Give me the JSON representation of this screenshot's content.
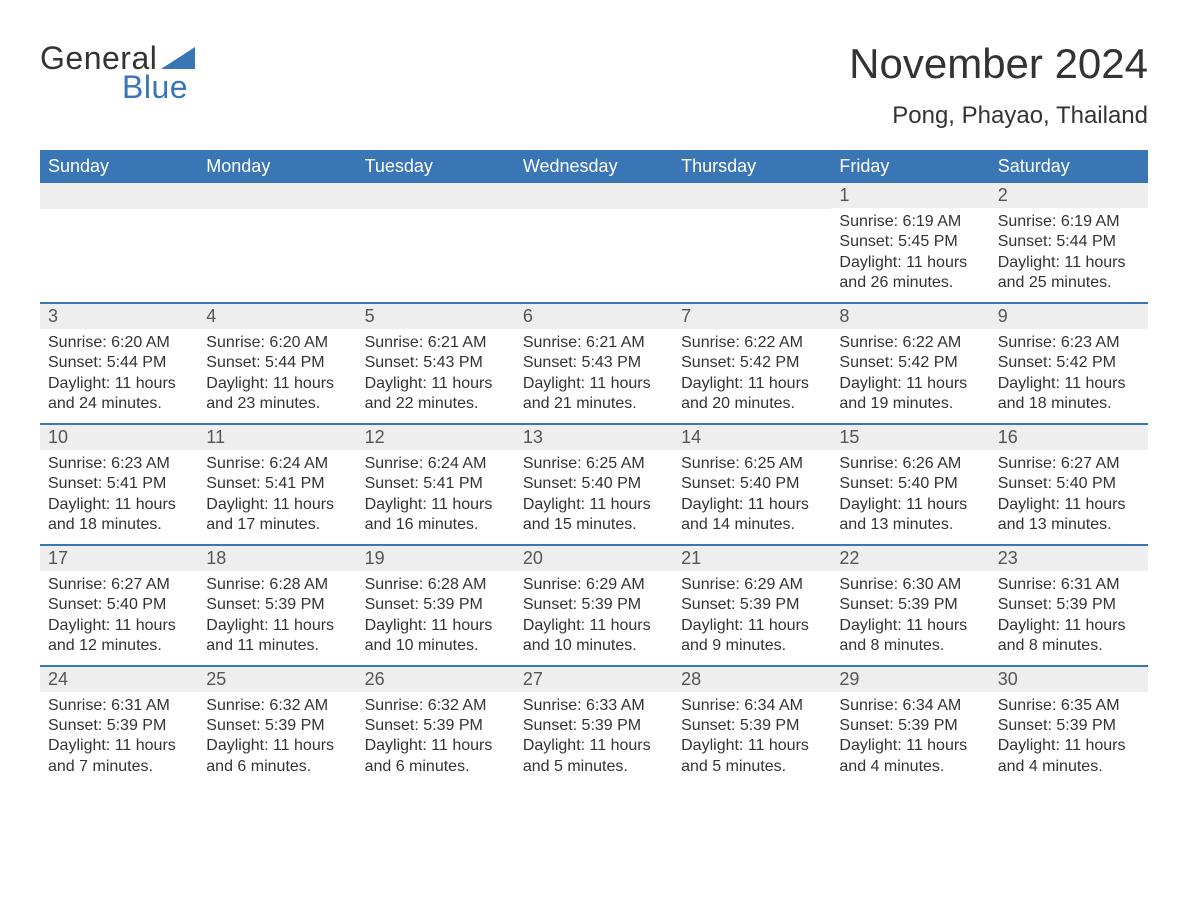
{
  "logo": {
    "word1": "General",
    "word2": "Blue"
  },
  "title": {
    "month": "November 2024",
    "location": "Pong, Phayao, Thailand"
  },
  "colors": {
    "header_bg": "#3a76b6",
    "header_text": "#ffffff",
    "week_border": "#3a76b6",
    "daynum_bg": "#eeeeee",
    "body_text": "#333333",
    "logo_blue": "#3a76b6"
  },
  "calendar": {
    "day_headers": [
      "Sunday",
      "Monday",
      "Tuesday",
      "Wednesday",
      "Thursday",
      "Friday",
      "Saturday"
    ],
    "weeks": [
      [
        {
          "empty": true
        },
        {
          "empty": true
        },
        {
          "empty": true
        },
        {
          "empty": true
        },
        {
          "empty": true
        },
        {
          "day": "1",
          "sunrise": "Sunrise: 6:19 AM",
          "sunset": "Sunset: 5:45 PM",
          "daylight": "Daylight: 11 hours and 26 minutes."
        },
        {
          "day": "2",
          "sunrise": "Sunrise: 6:19 AM",
          "sunset": "Sunset: 5:44 PM",
          "daylight": "Daylight: 11 hours and 25 minutes."
        }
      ],
      [
        {
          "day": "3",
          "sunrise": "Sunrise: 6:20 AM",
          "sunset": "Sunset: 5:44 PM",
          "daylight": "Daylight: 11 hours and 24 minutes."
        },
        {
          "day": "4",
          "sunrise": "Sunrise: 6:20 AM",
          "sunset": "Sunset: 5:44 PM",
          "daylight": "Daylight: 11 hours and 23 minutes."
        },
        {
          "day": "5",
          "sunrise": "Sunrise: 6:21 AM",
          "sunset": "Sunset: 5:43 PM",
          "daylight": "Daylight: 11 hours and 22 minutes."
        },
        {
          "day": "6",
          "sunrise": "Sunrise: 6:21 AM",
          "sunset": "Sunset: 5:43 PM",
          "daylight": "Daylight: 11 hours and 21 minutes."
        },
        {
          "day": "7",
          "sunrise": "Sunrise: 6:22 AM",
          "sunset": "Sunset: 5:42 PM",
          "daylight": "Daylight: 11 hours and 20 minutes."
        },
        {
          "day": "8",
          "sunrise": "Sunrise: 6:22 AM",
          "sunset": "Sunset: 5:42 PM",
          "daylight": "Daylight: 11 hours and 19 minutes."
        },
        {
          "day": "9",
          "sunrise": "Sunrise: 6:23 AM",
          "sunset": "Sunset: 5:42 PM",
          "daylight": "Daylight: 11 hours and 18 minutes."
        }
      ],
      [
        {
          "day": "10",
          "sunrise": "Sunrise: 6:23 AM",
          "sunset": "Sunset: 5:41 PM",
          "daylight": "Daylight: 11 hours and 18 minutes."
        },
        {
          "day": "11",
          "sunrise": "Sunrise: 6:24 AM",
          "sunset": "Sunset: 5:41 PM",
          "daylight": "Daylight: 11 hours and 17 minutes."
        },
        {
          "day": "12",
          "sunrise": "Sunrise: 6:24 AM",
          "sunset": "Sunset: 5:41 PM",
          "daylight": "Daylight: 11 hours and 16 minutes."
        },
        {
          "day": "13",
          "sunrise": "Sunrise: 6:25 AM",
          "sunset": "Sunset: 5:40 PM",
          "daylight": "Daylight: 11 hours and 15 minutes."
        },
        {
          "day": "14",
          "sunrise": "Sunrise: 6:25 AM",
          "sunset": "Sunset: 5:40 PM",
          "daylight": "Daylight: 11 hours and 14 minutes."
        },
        {
          "day": "15",
          "sunrise": "Sunrise: 6:26 AM",
          "sunset": "Sunset: 5:40 PM",
          "daylight": "Daylight: 11 hours and 13 minutes."
        },
        {
          "day": "16",
          "sunrise": "Sunrise: 6:27 AM",
          "sunset": "Sunset: 5:40 PM",
          "daylight": "Daylight: 11 hours and 13 minutes."
        }
      ],
      [
        {
          "day": "17",
          "sunrise": "Sunrise: 6:27 AM",
          "sunset": "Sunset: 5:40 PM",
          "daylight": "Daylight: 11 hours and 12 minutes."
        },
        {
          "day": "18",
          "sunrise": "Sunrise: 6:28 AM",
          "sunset": "Sunset: 5:39 PM",
          "daylight": "Daylight: 11 hours and 11 minutes."
        },
        {
          "day": "19",
          "sunrise": "Sunrise: 6:28 AM",
          "sunset": "Sunset: 5:39 PM",
          "daylight": "Daylight: 11 hours and 10 minutes."
        },
        {
          "day": "20",
          "sunrise": "Sunrise: 6:29 AM",
          "sunset": "Sunset: 5:39 PM",
          "daylight": "Daylight: 11 hours and 10 minutes."
        },
        {
          "day": "21",
          "sunrise": "Sunrise: 6:29 AM",
          "sunset": "Sunset: 5:39 PM",
          "daylight": "Daylight: 11 hours and 9 minutes."
        },
        {
          "day": "22",
          "sunrise": "Sunrise: 6:30 AM",
          "sunset": "Sunset: 5:39 PM",
          "daylight": "Daylight: 11 hours and 8 minutes."
        },
        {
          "day": "23",
          "sunrise": "Sunrise: 6:31 AM",
          "sunset": "Sunset: 5:39 PM",
          "daylight": "Daylight: 11 hours and 8 minutes."
        }
      ],
      [
        {
          "day": "24",
          "sunrise": "Sunrise: 6:31 AM",
          "sunset": "Sunset: 5:39 PM",
          "daylight": "Daylight: 11 hours and 7 minutes."
        },
        {
          "day": "25",
          "sunrise": "Sunrise: 6:32 AM",
          "sunset": "Sunset: 5:39 PM",
          "daylight": "Daylight: 11 hours and 6 minutes."
        },
        {
          "day": "26",
          "sunrise": "Sunrise: 6:32 AM",
          "sunset": "Sunset: 5:39 PM",
          "daylight": "Daylight: 11 hours and 6 minutes."
        },
        {
          "day": "27",
          "sunrise": "Sunrise: 6:33 AM",
          "sunset": "Sunset: 5:39 PM",
          "daylight": "Daylight: 11 hours and 5 minutes."
        },
        {
          "day": "28",
          "sunrise": "Sunrise: 6:34 AM",
          "sunset": "Sunset: 5:39 PM",
          "daylight": "Daylight: 11 hours and 5 minutes."
        },
        {
          "day": "29",
          "sunrise": "Sunrise: 6:34 AM",
          "sunset": "Sunset: 5:39 PM",
          "daylight": "Daylight: 11 hours and 4 minutes."
        },
        {
          "day": "30",
          "sunrise": "Sunrise: 6:35 AM",
          "sunset": "Sunset: 5:39 PM",
          "daylight": "Daylight: 11 hours and 4 minutes."
        }
      ]
    ]
  }
}
